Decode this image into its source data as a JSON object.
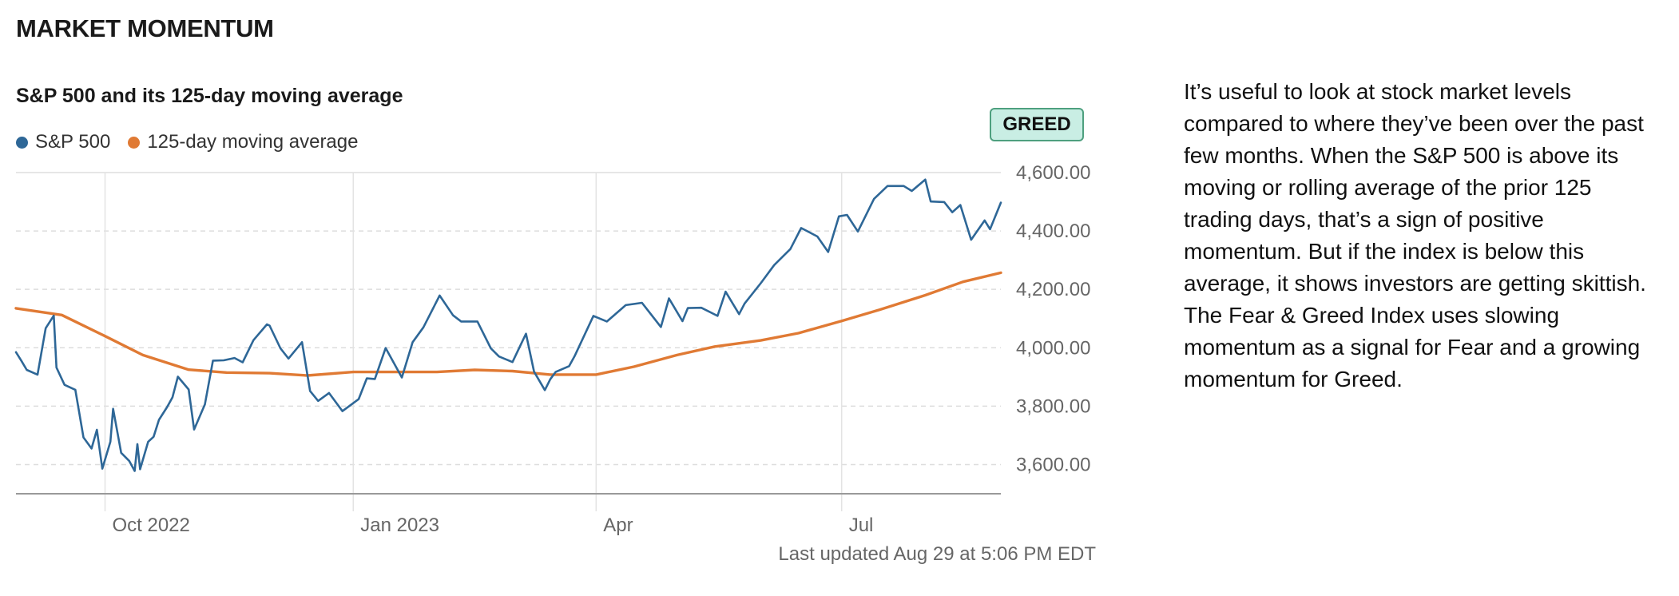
{
  "section_title": "MARKET MOMENTUM",
  "rating": "GREED",
  "updated": "Last updated Aug 29 at 5:06 PM EDT",
  "description": "It’s useful to look at stock market levels compared to where they’ve been over the past few months. When the S&P 500 is above its moving or rolling average of the prior 125 trading days, that’s a sign of positive momentum. But if the index is below this average, it shows investors are getting skittish. The Fear & Greed Index uses slowing momentum as a signal for Fear and a growing momentum for Greed.",
  "colors": {
    "sp500": "#2e6797",
    "moving_average": "#e07a34",
    "badge_bg": "#c9eee4",
    "badge_border": "#4ea07f"
  },
  "chart_data": {
    "type": "line",
    "title": "S&P 500 and its 125-day moving average",
    "ylim": [
      3500,
      4600
    ],
    "yticks": [
      3600,
      3800,
      4000,
      4200,
      4400,
      4600
    ],
    "ytick_labels": [
      "3,600.00",
      "3,800.00",
      "4,000.00",
      "4,200.00",
      "4,400.00",
      "4,600.00"
    ],
    "xlim": [
      "2022-08-29",
      "2023-08-29"
    ],
    "xticks": [
      "2022-10-01",
      "2023-01-01",
      "2023-04-01",
      "2023-07-01"
    ],
    "xtick_labels": [
      "Oct 2022",
      "Jan 2023",
      "Apr",
      "Jul"
    ],
    "grid": true,
    "legend_position": "top-left",
    "series": [
      {
        "name": "S&P 500",
        "x": [
          "2022-08-29",
          "2022-08-31",
          "2022-09-02",
          "2022-09-06",
          "2022-09-09",
          "2022-09-12",
          "2022-09-13",
          "2022-09-16",
          "2022-09-20",
          "2022-09-23",
          "2022-09-26",
          "2022-09-28",
          "2022-09-30",
          "2022-10-03",
          "2022-10-04",
          "2022-10-07",
          "2022-10-10",
          "2022-10-12",
          "2022-10-13",
          "2022-10-14",
          "2022-10-17",
          "2022-10-19",
          "2022-10-21",
          "2022-10-24",
          "2022-10-26",
          "2022-10-28",
          "2022-11-01",
          "2022-11-03",
          "2022-11-07",
          "2022-11-10",
          "2022-11-14",
          "2022-11-18",
          "2022-11-21",
          "2022-11-25",
          "2022-11-30",
          "2022-12-01",
          "2022-12-05",
          "2022-12-08",
          "2022-12-13",
          "2022-12-16",
          "2022-12-19",
          "2022-12-23",
          "2022-12-28",
          "2023-01-03",
          "2023-01-06",
          "2023-01-09",
          "2023-01-13",
          "2023-01-19",
          "2023-01-23",
          "2023-01-27",
          "2023-02-02",
          "2023-02-07",
          "2023-02-10",
          "2023-02-16",
          "2023-02-21",
          "2023-02-24",
          "2023-03-01",
          "2023-03-06",
          "2023-03-09",
          "2023-03-13",
          "2023-03-15",
          "2023-03-17",
          "2023-03-22",
          "2023-03-24",
          "2023-03-31",
          "2023-04-05",
          "2023-04-12",
          "2023-04-18",
          "2023-04-25",
          "2023-04-28",
          "2023-05-03",
          "2023-05-05",
          "2023-05-10",
          "2023-05-16",
          "2023-05-19",
          "2023-05-24",
          "2023-05-26",
          "2023-06-01",
          "2023-06-06",
          "2023-06-12",
          "2023-06-16",
          "2023-06-22",
          "2023-06-26",
          "2023-06-30",
          "2023-07-03",
          "2023-07-07",
          "2023-07-13",
          "2023-07-18",
          "2023-07-24",
          "2023-07-27",
          "2023-08-01",
          "2023-08-03",
          "2023-08-08",
          "2023-08-11",
          "2023-08-14",
          "2023-08-18",
          "2023-08-23",
          "2023-08-25",
          "2023-08-29"
        ],
        "values": [
          3985,
          3955,
          3924,
          3908,
          4067,
          4110,
          3932,
          3873,
          3856,
          3693,
          3655,
          3719,
          3586,
          3678,
          3791,
          3640,
          3612,
          3578,
          3670,
          3584,
          3678,
          3695,
          3753,
          3797,
          3830,
          3901,
          3857,
          3720,
          3806,
          3956,
          3957,
          3965,
          3950,
          4026,
          4080,
          4076,
          3998,
          3963,
          4019,
          3852,
          3818,
          3845,
          3783,
          3824,
          3895,
          3893,
          3999,
          3898,
          4019,
          4070,
          4179,
          4111,
          4090,
          4090,
          3998,
          3970,
          3951,
          4048,
          3918,
          3855,
          3892,
          3917,
          3937,
          3971,
          4109,
          4090,
          4146,
          4154,
          4071,
          4169,
          4091,
          4136,
          4137,
          4109,
          4192,
          4115,
          4151,
          4221,
          4283,
          4338,
          4410,
          4381,
          4328,
          4450,
          4455,
          4398,
          4510,
          4554,
          4554,
          4537,
          4576,
          4501,
          4499,
          4464,
          4489,
          4370,
          4436,
          4406,
          4497
        ]
      },
      {
        "name": "125-day moving average",
        "x": [
          "2022-08-29",
          "2022-09-15",
          "2022-10-01",
          "2022-10-15",
          "2022-11-01",
          "2022-11-15",
          "2022-12-01",
          "2022-12-15",
          "2023-01-01",
          "2023-01-15",
          "2023-02-01",
          "2023-02-15",
          "2023-03-01",
          "2023-03-15",
          "2023-04-01",
          "2023-04-15",
          "2023-05-01",
          "2023-05-15",
          "2023-06-01",
          "2023-06-15",
          "2023-07-01",
          "2023-07-15",
          "2023-08-01",
          "2023-08-15",
          "2023-08-29"
        ],
        "values": [
          4135,
          4112,
          4040,
          3975,
          3925,
          3915,
          3913,
          3905,
          3917,
          3917,
          3917,
          3924,
          3920,
          3908,
          3908,
          3935,
          3975,
          4004,
          4025,
          4050,
          4092,
          4130,
          4180,
          4226,
          4257
        ]
      }
    ]
  }
}
